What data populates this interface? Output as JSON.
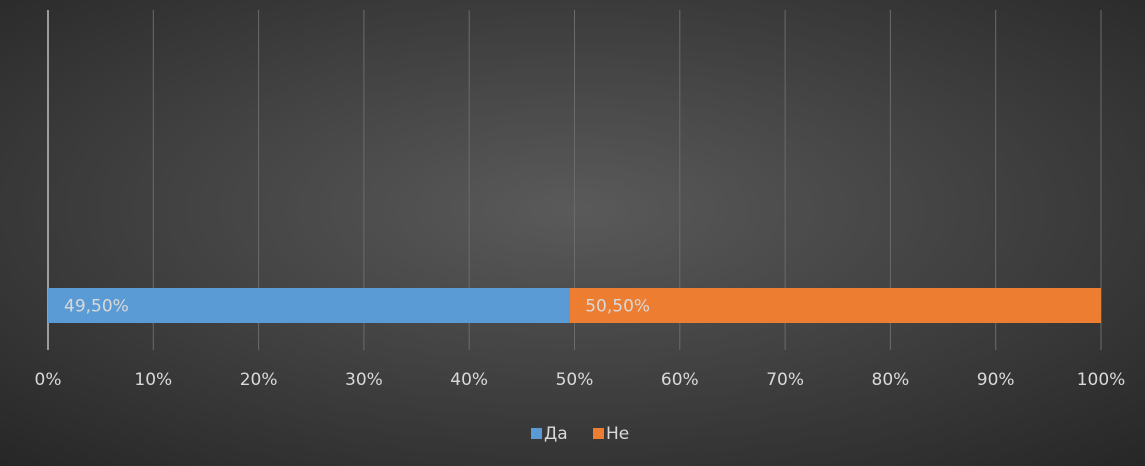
{
  "chart_data": {
    "type": "stacked_bar_horizontal",
    "categories": [
      null
    ],
    "series": [
      {
        "name": "Да",
        "color": "#5b9bd5",
        "values": [
          49.5
        ],
        "value_labels": [
          "49,50%"
        ]
      },
      {
        "name": "Не",
        "color": "#ed7d31",
        "values": [
          50.5
        ],
        "value_labels": [
          "50,50%"
        ]
      }
    ],
    "xlim": [
      0,
      100
    ],
    "xticks": [
      {
        "value": 0,
        "label": "0%"
      },
      {
        "value": 10,
        "label": "10%"
      },
      {
        "value": 20,
        "label": "20%"
      },
      {
        "value": 30,
        "label": "30%"
      },
      {
        "value": 40,
        "label": "40%"
      },
      {
        "value": 50,
        "label": "50%"
      },
      {
        "value": 60,
        "label": "60%"
      },
      {
        "value": 70,
        "label": "70%"
      },
      {
        "value": 80,
        "label": "80%"
      },
      {
        "value": 90,
        "label": "90%"
      },
      {
        "value": 100,
        "label": "100%"
      }
    ],
    "grid": true,
    "legend": "bottom"
  }
}
